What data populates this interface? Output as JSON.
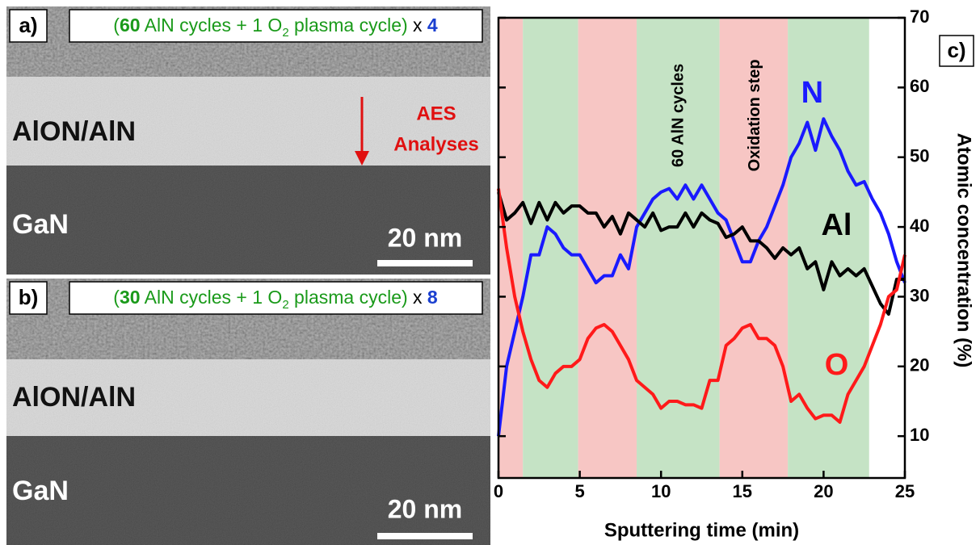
{
  "panels": [
    {
      "label": "a)",
      "heading": [
        {
          "text": "(",
          "color": "#1a9a1a"
        },
        {
          "text": "60",
          "color": "#1a9a1a",
          "bold": true
        },
        {
          "text": " AlN cycles + 1 O",
          "color": "#1a9a1a"
        },
        {
          "text": "2",
          "color": "#1a9a1a",
          "sub": true
        },
        {
          "text": " plasma cycle)",
          "color": "#1a9a1a"
        },
        {
          "text": " x ",
          "color": "#000000"
        },
        {
          "text": "4",
          "color": "#1a3fd0",
          "bold": true
        }
      ],
      "layer": "AlON/AlN",
      "substrate": "GaN",
      "scale": "20 nm",
      "arrow_text": [
        "AES",
        "Analyses"
      ]
    },
    {
      "label": "b)",
      "heading": [
        {
          "text": "(",
          "color": "#1a9a1a"
        },
        {
          "text": "30",
          "color": "#1a9a1a",
          "bold": true
        },
        {
          "text": " AlN cycles + 1 O",
          "color": "#1a9a1a"
        },
        {
          "text": "2",
          "color": "#1a9a1a",
          "sub": true
        },
        {
          "text": " plasma cycle)",
          "color": "#1a9a1a"
        },
        {
          "text": " x ",
          "color": "#000000"
        },
        {
          "text": "8",
          "color": "#1a3fd0",
          "bold": true
        }
      ],
      "layer": "AlON/AlN",
      "substrate": "GaN",
      "scale": "20 nm"
    }
  ],
  "chart_data": {
    "type": "line",
    "panel_label": "c)",
    "xlabel": "Sputtering time (min)",
    "ylabel": "Atomic concentration (%)",
    "xlim": [
      0,
      25
    ],
    "xticks": [
      0,
      5,
      10,
      15,
      20,
      25
    ],
    "ylim": [
      4,
      70
    ],
    "yticks": [
      10,
      20,
      30,
      40,
      50,
      60,
      70
    ],
    "bands": [
      {
        "start": 0,
        "end": 1.5,
        "color": "#f7c6c4"
      },
      {
        "start": 1.5,
        "end": 4.9,
        "color": "#c5e3c5"
      },
      {
        "start": 4.9,
        "end": 8.5,
        "color": "#f7c6c4"
      },
      {
        "start": 8.5,
        "end": 13.6,
        "color": "#c5e3c5"
      },
      {
        "start": 13.6,
        "end": 17.8,
        "color": "#f7c6c4"
      },
      {
        "start": 17.8,
        "end": 22.8,
        "color": "#c5e3c5"
      }
    ],
    "annotations": [
      {
        "text": "60 AlN cycles",
        "color": "#000000"
      },
      {
        "text": "Oxidation step",
        "color": "#000000"
      },
      {
        "text": "N",
        "color": "#1a1aff"
      },
      {
        "text": "Al",
        "color": "#000000"
      },
      {
        "text": "O",
        "color": "#ff1a1a"
      }
    ],
    "x": [
      0,
      0.5,
      1,
      1.5,
      2,
      2.5,
      3,
      3.5,
      4,
      4.5,
      5,
      5.5,
      6,
      6.5,
      7,
      7.5,
      8,
      8.5,
      9,
      9.5,
      10,
      10.5,
      11,
      11.5,
      12,
      12.5,
      13,
      13.5,
      14,
      14.5,
      15,
      15.5,
      16,
      16.5,
      17,
      17.5,
      18,
      18.5,
      19,
      19.5,
      20,
      20.5,
      21,
      21.5,
      22,
      22.5,
      23,
      23.5,
      24,
      24.5,
      25
    ],
    "series": [
      {
        "name": "N",
        "color": "#1a1aff",
        "values": [
          10,
          20,
          25,
          30,
          36,
          36,
          40,
          39,
          37,
          36,
          36,
          34,
          32,
          33,
          33,
          36,
          34,
          40,
          42,
          44,
          45,
          45.5,
          44,
          46,
          44,
          46,
          44,
          42,
          41,
          38,
          35,
          35,
          38,
          40,
          43,
          46,
          50,
          52,
          55,
          51,
          55.5,
          53,
          51,
          48,
          46,
          46.5,
          44,
          42,
          39,
          35,
          32
        ]
      },
      {
        "name": "Al",
        "color": "#000000",
        "values": [
          45,
          41,
          42,
          43.5,
          40.5,
          43.5,
          41,
          43.5,
          42,
          43,
          43,
          42,
          42,
          40,
          41.5,
          39,
          42,
          41,
          40,
          42,
          39.5,
          40,
          40,
          42,
          40,
          42,
          41,
          40.5,
          38.5,
          39,
          40,
          38,
          38,
          37,
          35.5,
          37,
          36,
          37,
          34,
          35,
          31,
          35,
          33,
          34,
          33,
          34,
          31.5,
          29,
          27.5,
          32.5,
          32.5
        ]
      },
      {
        "name": "O",
        "color": "#ff1a1a",
        "values": [
          45.5,
          37,
          30,
          25,
          21,
          18,
          17,
          19,
          20,
          20,
          21,
          24,
          25.5,
          26,
          25,
          23,
          21,
          18,
          17,
          16,
          14,
          15,
          15,
          14.5,
          14.5,
          14,
          18,
          18,
          23,
          24,
          25.5,
          26,
          24,
          24,
          23,
          20,
          15,
          16,
          14,
          12.5,
          13,
          13,
          12,
          16,
          18,
          20,
          23,
          26,
          30,
          31,
          36
        ]
      }
    ]
  }
}
